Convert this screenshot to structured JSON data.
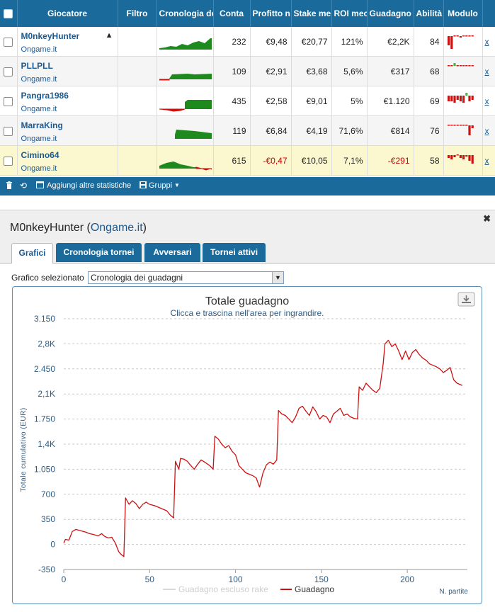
{
  "table": {
    "headers": [
      "Giocatore",
      "Filtro",
      "Cronologia de",
      "Conta",
      "Profitto n",
      "Stake me",
      "ROI mec",
      "Guadagno t",
      "Abilità",
      "Modulo"
    ],
    "rows": [
      {
        "name": "M0nkeyHunter",
        "site": "Ongame.it",
        "count": "232",
        "profit": "€9,48",
        "stake": "€20,77",
        "roi": "121%",
        "gain": "€2,2K",
        "skill": "84",
        "close": "x",
        "negative": false
      },
      {
        "name": "PLLPLL",
        "site": "Ongame.it",
        "count": "109",
        "profit": "€2,91",
        "stake": "€3,68",
        "roi": "5,6%",
        "gain": "€317",
        "skill": "68",
        "close": "x",
        "negative": false
      },
      {
        "name": "Pangra1986",
        "site": "Ongame.it",
        "count": "435",
        "profit": "€2,58",
        "stake": "€9,01",
        "roi": "5%",
        "gain": "€1.120",
        "skill": "69",
        "close": "x",
        "negative": false
      },
      {
        "name": "MarraKing",
        "site": "Ongame.it",
        "count": "119",
        "profit": "€6,84",
        "stake": "€4,19",
        "roi": "71,6%",
        "gain": "€814",
        "skill": "76",
        "close": "x",
        "negative": false
      },
      {
        "name": "Cimino64",
        "site": "Ongame.it",
        "count": "615",
        "profit": "-€0,47",
        "stake": "€10,05",
        "roi": "7,1%",
        "gain": "-€291",
        "skill": "58",
        "close": "x",
        "negative": true
      }
    ]
  },
  "toolbar": {
    "add_stats": "Aggiungi altre statistiche",
    "groups": "Gruppi"
  },
  "panel": {
    "player": "M0nkeyHunter",
    "site": "Ongame.it",
    "tabs": [
      "Grafici",
      "Cronologia tornei",
      "Avversari",
      "Tornei attivi"
    ],
    "active_tab": "Grafici",
    "select_label": "Grafico selezionato",
    "select_value": "Cronologia dei guadagni"
  },
  "icons": [
    "trash-icon",
    "refresh-icon",
    "window-icon",
    "save-icon",
    "shark-icon",
    "download-icon",
    "close-icon"
  ],
  "colors": {
    "header": "#1a6b9c",
    "positive": "#1e8a1e",
    "negative": "#cc1111",
    "line": "#cc1111",
    "highlight_row": "#fbf8cf"
  },
  "chart_data": {
    "type": "line",
    "title": "Totale guadagno",
    "subtitle": "Clicca e trascina nell'area per ingrandire.",
    "xlabel": "N. partite",
    "ylabel": "Totale cumulativo (EUR)",
    "xlim": [
      0,
      235
    ],
    "ylim": [
      -350,
      3150
    ],
    "y_ticks": [
      "-350",
      "0",
      "350",
      "700",
      "1.050",
      "1,4K",
      "1.750",
      "2,1K",
      "2.450",
      "2,8K",
      "3.150"
    ],
    "x_ticks": [
      "0",
      "50",
      "100",
      "150",
      "200"
    ],
    "legend": [
      "Guadagno escluso rake",
      "Guadagno"
    ],
    "series": [
      {
        "name": "Guadagno",
        "color": "#cc1111",
        "points": [
          [
            0,
            20
          ],
          [
            1,
            70
          ],
          [
            3,
            60
          ],
          [
            5,
            180
          ],
          [
            7,
            210
          ],
          [
            10,
            190
          ],
          [
            13,
            170
          ],
          [
            15,
            150
          ],
          [
            17,
            140
          ],
          [
            20,
            120
          ],
          [
            22,
            150
          ],
          [
            24,
            110
          ],
          [
            26,
            90
          ],
          [
            28,
            100
          ],
          [
            30,
            20
          ],
          [
            32,
            -100
          ],
          [
            33,
            -130
          ],
          [
            35,
            -170
          ],
          [
            36,
            650
          ],
          [
            38,
            560
          ],
          [
            40,
            610
          ],
          [
            42,
            570
          ],
          [
            44,
            500
          ],
          [
            46,
            560
          ],
          [
            48,
            590
          ],
          [
            50,
            560
          ],
          [
            53,
            540
          ],
          [
            56,
            510
          ],
          [
            60,
            470
          ],
          [
            62,
            410
          ],
          [
            64,
            370
          ],
          [
            65,
            1160
          ],
          [
            67,
            1050
          ],
          [
            68,
            1200
          ],
          [
            70,
            1190
          ],
          [
            72,
            1160
          ],
          [
            74,
            1100
          ],
          [
            76,
            1050
          ],
          [
            78,
            1120
          ],
          [
            80,
            1180
          ],
          [
            82,
            1150
          ],
          [
            85,
            1100
          ],
          [
            87,
            1050
          ],
          [
            88,
            1510
          ],
          [
            90,
            1470
          ],
          [
            92,
            1400
          ],
          [
            94,
            1350
          ],
          [
            96,
            1380
          ],
          [
            98,
            1300
          ],
          [
            100,
            1250
          ],
          [
            102,
            1100
          ],
          [
            104,
            1050
          ],
          [
            106,
            1000
          ],
          [
            108,
            980
          ],
          [
            110,
            960
          ],
          [
            112,
            930
          ],
          [
            114,
            800
          ],
          [
            116,
            1000
          ],
          [
            118,
            1110
          ],
          [
            120,
            1150
          ],
          [
            122,
            1120
          ],
          [
            124,
            1180
          ],
          [
            125,
            1870
          ],
          [
            127,
            1820
          ],
          [
            129,
            1800
          ],
          [
            131,
            1750
          ],
          [
            133,
            1700
          ],
          [
            135,
            1780
          ],
          [
            137,
            1900
          ],
          [
            139,
            1930
          ],
          [
            141,
            1860
          ],
          [
            143,
            1800
          ],
          [
            145,
            1920
          ],
          [
            147,
            1850
          ],
          [
            149,
            1750
          ],
          [
            151,
            1800
          ],
          [
            153,
            1780
          ],
          [
            155,
            1700
          ],
          [
            157,
            1820
          ],
          [
            159,
            1860
          ],
          [
            161,
            1900
          ],
          [
            163,
            1800
          ],
          [
            165,
            1820
          ],
          [
            167,
            1780
          ],
          [
            169,
            1760
          ],
          [
            171,
            1750
          ],
          [
            172,
            2200
          ],
          [
            174,
            2150
          ],
          [
            176,
            2250
          ],
          [
            178,
            2200
          ],
          [
            180,
            2150
          ],
          [
            182,
            2120
          ],
          [
            184,
            2180
          ],
          [
            186,
            2520
          ],
          [
            187,
            2800
          ],
          [
            189,
            2850
          ],
          [
            191,
            2760
          ],
          [
            193,
            2800
          ],
          [
            195,
            2700
          ],
          [
            197,
            2580
          ],
          [
            199,
            2700
          ],
          [
            201,
            2580
          ],
          [
            203,
            2680
          ],
          [
            205,
            2720
          ],
          [
            207,
            2650
          ],
          [
            209,
            2600
          ],
          [
            211,
            2570
          ],
          [
            213,
            2520
          ],
          [
            215,
            2500
          ],
          [
            217,
            2480
          ],
          [
            219,
            2450
          ],
          [
            221,
            2400
          ],
          [
            223,
            2430
          ],
          [
            225,
            2470
          ],
          [
            227,
            2300
          ],
          [
            229,
            2250
          ],
          [
            231,
            2230
          ],
          [
            232,
            2220
          ]
        ]
      },
      {
        "name": "Guadagno escluso rake",
        "color": "#d8d8d8",
        "points": []
      }
    ]
  }
}
